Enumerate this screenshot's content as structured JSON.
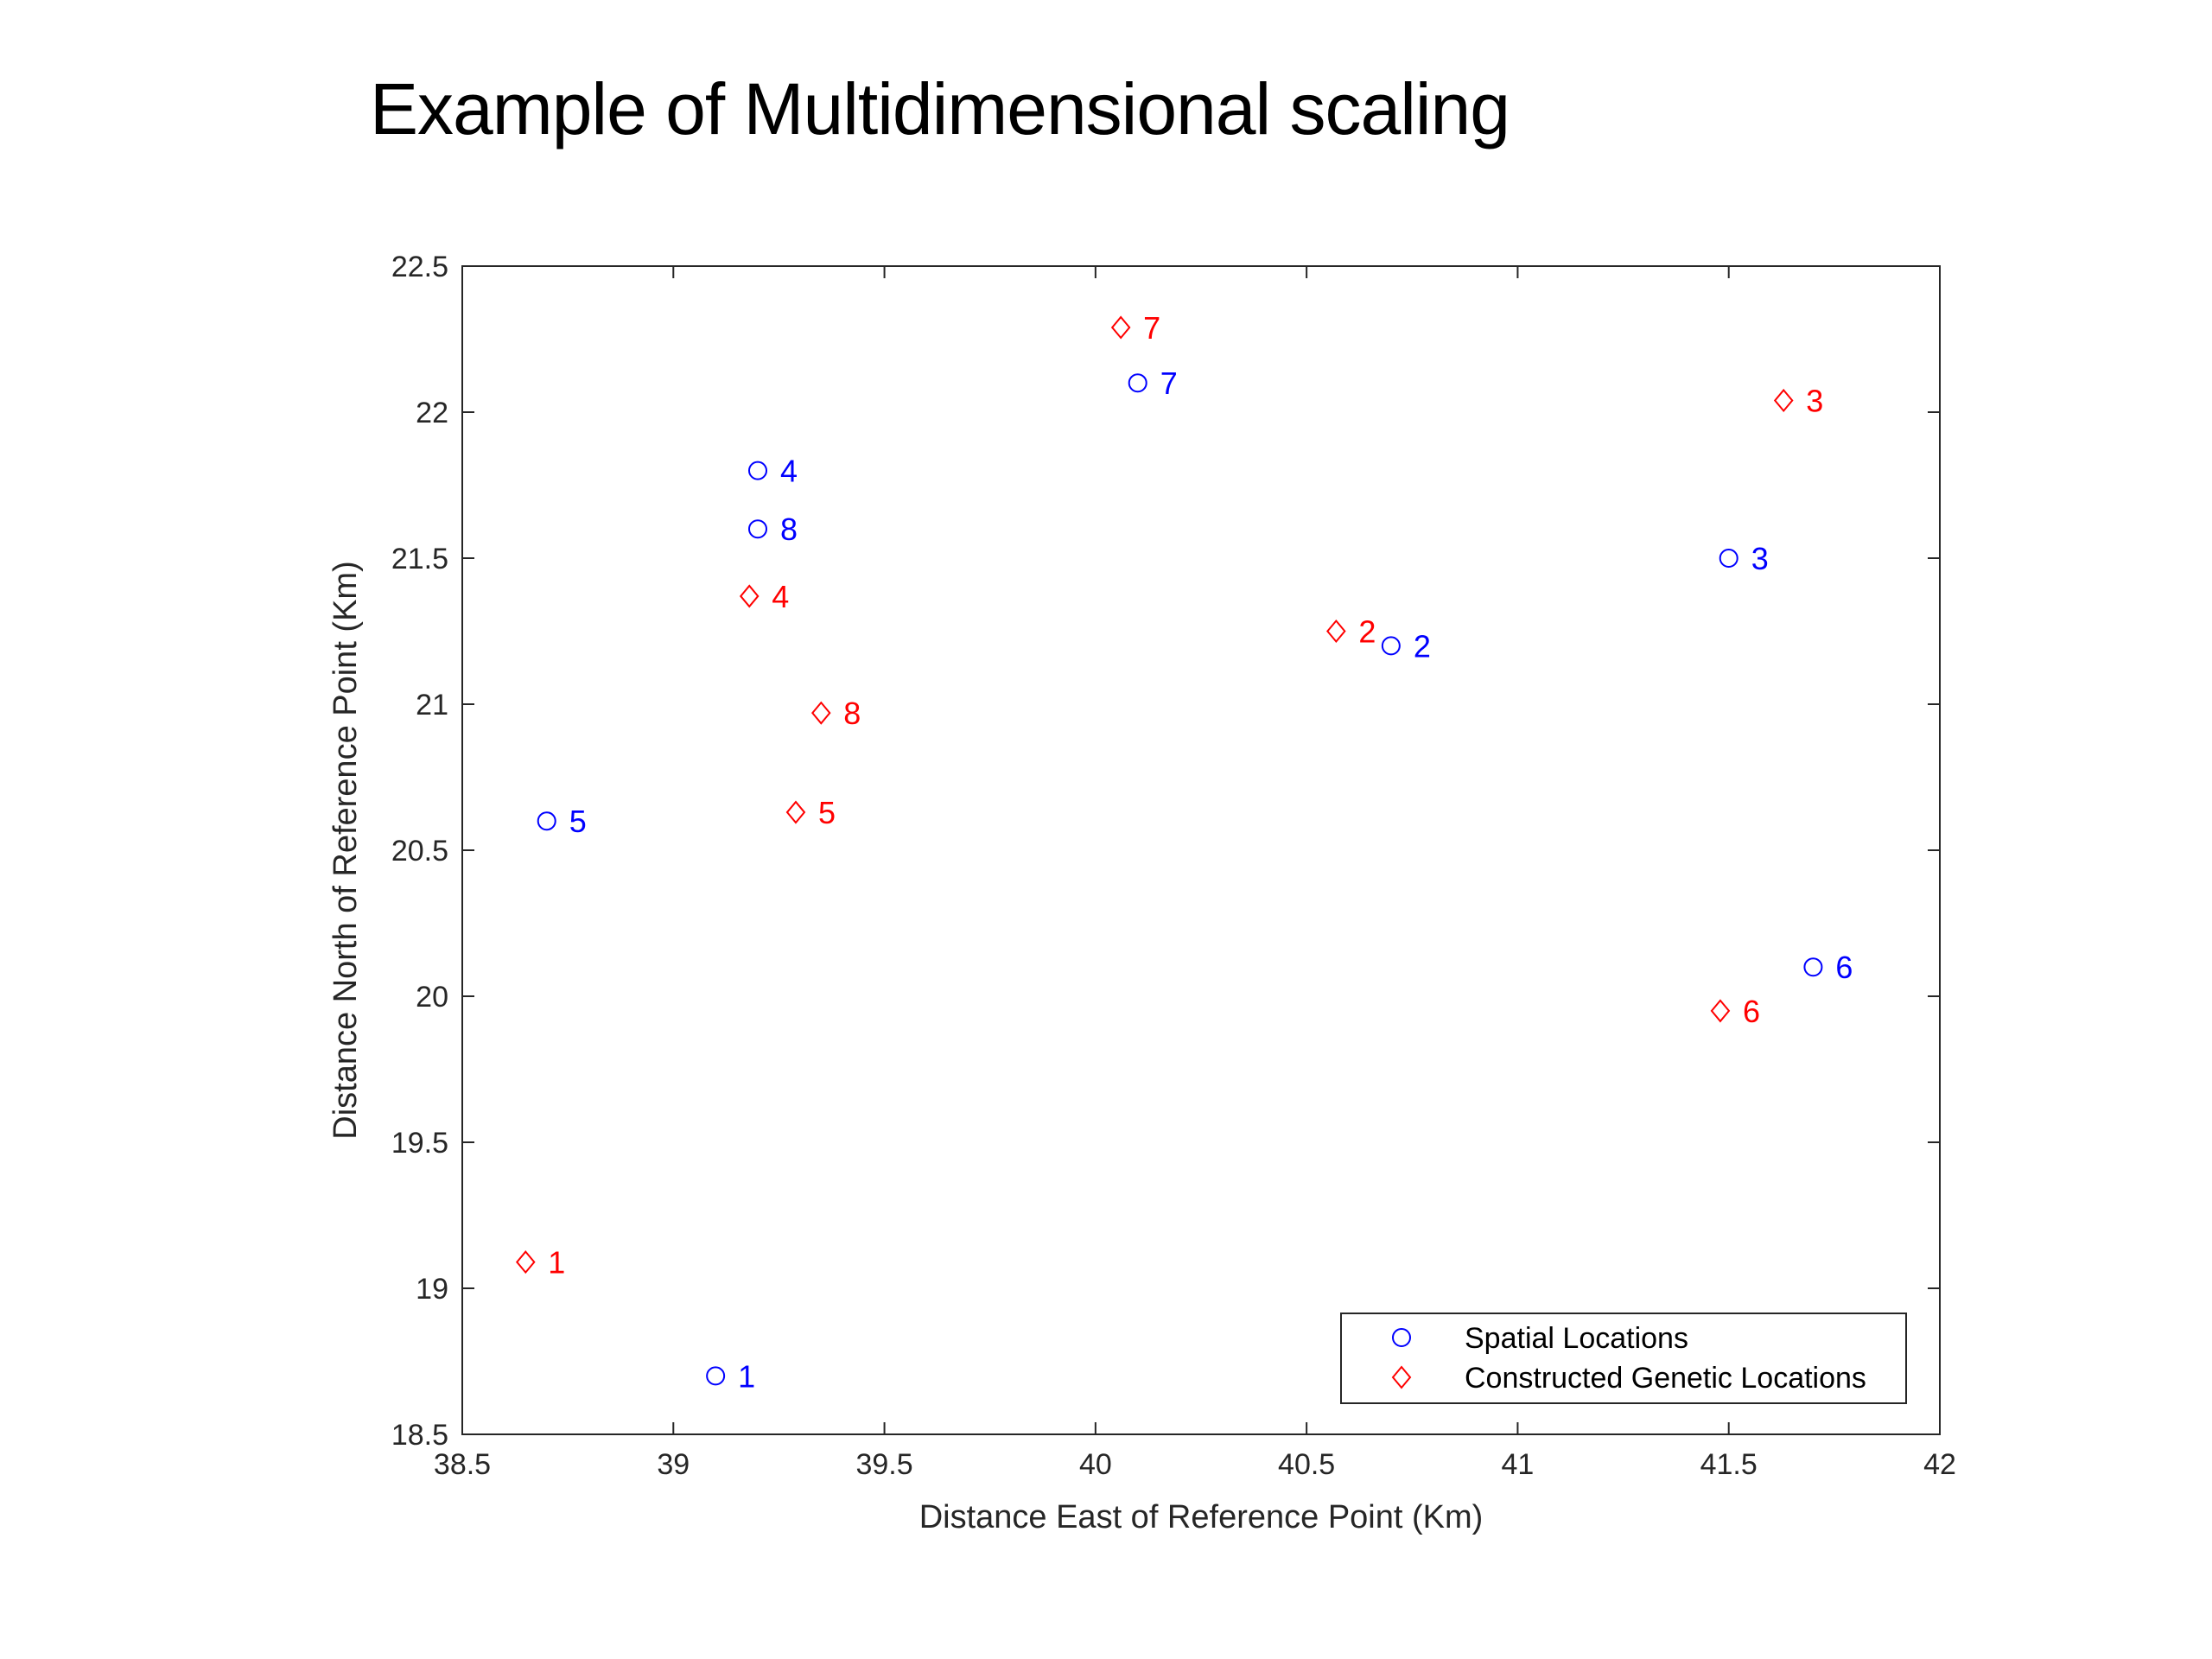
{
  "slide": {
    "title": "Example of Multidimensional scaling"
  },
  "chart_data": {
    "type": "scatter",
    "title": "",
    "xlabel": "Distance East of Reference Point (Km)",
    "ylabel": "Distance North of Reference Point (Km)",
    "xlim": [
      38.5,
      42
    ],
    "ylim": [
      18.5,
      22.5
    ],
    "xticks": [
      38.5,
      39,
      39.5,
      40,
      40.5,
      41,
      41.5,
      42
    ],
    "yticks": [
      18.5,
      19,
      19.5,
      20,
      20.5,
      21,
      21.5,
      22,
      22.5
    ],
    "xtick_labels": [
      "38.5",
      "39",
      "39.5",
      "40",
      "40.5",
      "41",
      "41.5",
      "42"
    ],
    "ytick_labels": [
      "18.5",
      "19",
      "19.5",
      "20",
      "20.5",
      "21",
      "21.5",
      "22",
      "22.5"
    ],
    "grid": false,
    "legend_position": "bottom-right",
    "series": [
      {
        "name": "Spatial Locations",
        "marker": "circle",
        "color": "#0000ff",
        "points": [
          {
            "label": "1",
            "x": 39.1,
            "y": 18.7
          },
          {
            "label": "2",
            "x": 40.7,
            "y": 21.2
          },
          {
            "label": "3",
            "x": 41.5,
            "y": 21.5
          },
          {
            "label": "4",
            "x": 39.2,
            "y": 21.8
          },
          {
            "label": "5",
            "x": 38.7,
            "y": 20.6
          },
          {
            "label": "6",
            "x": 41.7,
            "y": 20.1
          },
          {
            "label": "7",
            "x": 40.1,
            "y": 22.1
          },
          {
            "label": "8",
            "x": 39.2,
            "y": 21.6
          }
        ]
      },
      {
        "name": "Constructed Genetic Locations",
        "marker": "diamond",
        "color": "#ff0000",
        "points": [
          {
            "label": "1",
            "x": 38.65,
            "y": 19.09
          },
          {
            "label": "2",
            "x": 40.57,
            "y": 21.25
          },
          {
            "label": "3",
            "x": 41.63,
            "y": 22.04
          },
          {
            "label": "4",
            "x": 39.18,
            "y": 21.37
          },
          {
            "label": "5",
            "x": 39.29,
            "y": 20.63
          },
          {
            "label": "6",
            "x": 41.48,
            "y": 19.95
          },
          {
            "label": "7",
            "x": 40.06,
            "y": 22.29
          },
          {
            "label": "8",
            "x": 39.35,
            "y": 20.97
          }
        ]
      }
    ]
  }
}
